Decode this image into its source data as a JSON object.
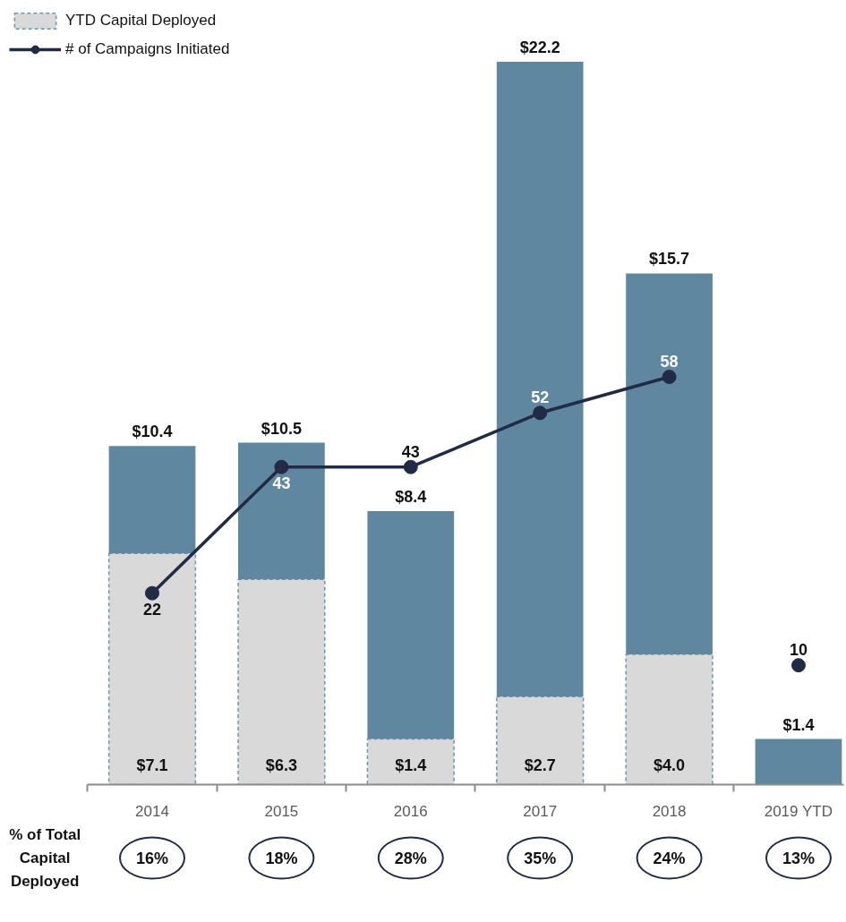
{
  "chart_data": {
    "type": "bar",
    "stacked": true,
    "categories": [
      "2014",
      "2015",
      "2016",
      "2017",
      "2018",
      "2019 YTD"
    ],
    "series": [
      {
        "name": "YTD Capital Deployed",
        "color": "#d9d9d9",
        "values": [
          7.1,
          6.3,
          1.4,
          2.7,
          4.0,
          null
        ],
        "value_labels": [
          "$7.1",
          "$6.3",
          "$1.4",
          "$2.7",
          "$4.0",
          null
        ]
      },
      {
        "color": "#5f87a0",
        "values": [
          3.3,
          4.2,
          7.0,
          19.5,
          11.7,
          1.4
        ]
      },
      {
        "name": "# of Campaigns Initiated",
        "type": "line",
        "axis": "y2",
        "color": "#222b45",
        "values": [
          22,
          43,
          43,
          52,
          58,
          null
        ],
        "value_labels": [
          "22",
          "43",
          "43",
          "52",
          "58",
          null
        ]
      },
      {
        "type": "scatter",
        "axis": "y2",
        "color": "#222b45",
        "values": [
          null,
          null,
          null,
          null,
          null,
          10
        ],
        "value_labels": [
          null,
          null,
          null,
          null,
          null,
          "10"
        ]
      }
    ],
    "totals": [
      "$10.4",
      "$10.5",
      "$8.4",
      "$22.2",
      "$15.7",
      "$1.4"
    ],
    "tick_labels": "x",
    "legend": "top left",
    "marker": "circle",
    "line_style": "solid",
    "annotations": [
      "% of Total Capital Deployed",
      "16%",
      "18%",
      "28%",
      "35%",
      "24%",
      "13%"
    ]
  }
}
